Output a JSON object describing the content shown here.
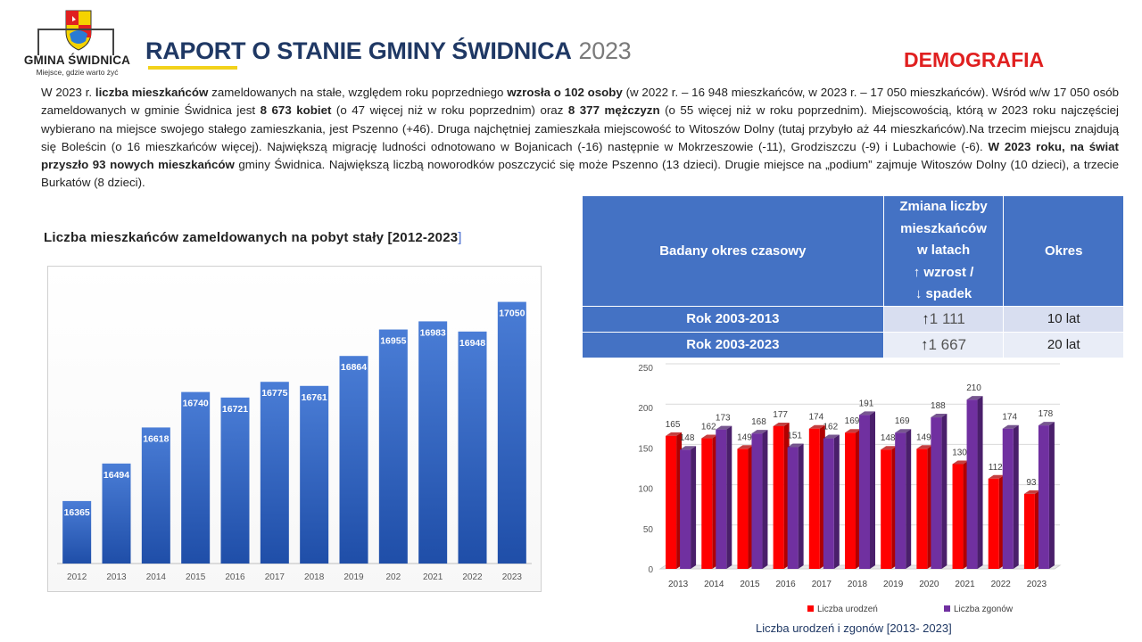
{
  "header": {
    "logo_name": "GMINA ŚWIDNICA",
    "logo_motto": "Miejsce, gdzie warto żyć",
    "title": "RAPORT O STANIE GMINY ŚWIDNICA",
    "year": "2023",
    "section": "DEMOGRAFIA"
  },
  "intro": {
    "s1": "W 2023 r. ",
    "s2": "liczba mieszkańców",
    "s3": " zameldowanych na stałe, względem roku poprzedniego ",
    "s4": "wzrosła o 102 osoby",
    "s5": " (w 2022 r. – 16 948 mieszkańców, w 2023 r. – 17 050 mieszkańców). Wśród w/w 17 050 osób zameldowanych w gminie Świdnica jest ",
    "s6": "8 673 kobiet",
    "s7": " (o 47 więcej niż w roku poprzednim) oraz ",
    "s8": "8 377 mężczyzn",
    "s9": " (o 55 więcej niż w roku poprzednim). Miejscowością, którą w 2023 roku najczęściej wybierano na miejsce swojego stałego zamieszkania, jest Pszenno (+46). Druga najchętniej zamieszkała miejscowość to Witoszów Dolny (tutaj przybyło aż 44 mieszkańców).Na trzecim miejscu znajdują się Boleścin (o 16 mieszkańców więcej). Największą migrację ludności odnotowano w Bojanicach (-16) następnie w Mokrzeszowie (-11), Grodziszczu (-9) i Lubachowie (-6). ",
    "s10": "W 2023 roku, na świat przyszło 93 nowych mieszkańców",
    "s11": " gminy Świdnica. Największą liczbą noworodków poszczycić się może Pszenno (13 dzieci). Drugie miejsce na „podium” zajmuje Witoszów Dolny (10 dzieci), a trzecie Burkatów (8 dzieci)."
  },
  "period_table": {
    "header_period": "Badany okres czasowy",
    "header_change_lines": [
      "Zmiana liczby",
      "mieszkańców",
      "w latach",
      "↑ wzrost /",
      "↓ spadek"
    ],
    "header_okres": "Okres",
    "rows": [
      {
        "label": "Rok 2003-2013",
        "arrow": "↑",
        "change": "1 111",
        "okres": "10 lat"
      },
      {
        "label": "Rok 2003-2023",
        "arrow": "↑",
        "change": "1 667",
        "okres": "20 lat"
      }
    ]
  },
  "chart_data": [
    {
      "type": "bar",
      "title": "Liczba mieszkańców zameldowanych na pobyt stały [2012-2023",
      "title_bracket": "]",
      "categories": [
        "2012",
        "2013",
        "2014",
        "2015",
        "2016",
        "2017",
        "2018",
        "2019",
        "202",
        "2021",
        "2022",
        "2023"
      ],
      "values": [
        16365,
        16494,
        16618,
        16740,
        16721,
        16775,
        16761,
        16864,
        16955,
        16983,
        16948,
        17050
      ],
      "ylim": [
        16150,
        17110
      ],
      "xlabel": "",
      "ylabel": "",
      "grid": false,
      "colors": {
        "bar_top": "#4a7dd6",
        "bar_bottom": "#1f4ea8"
      }
    },
    {
      "type": "bar",
      "caption": "Liczba urodzeń  i zgonów [2013- 2023]",
      "categories": [
        "2013",
        "2014",
        "2015",
        "2016",
        "2017",
        "2018",
        "2019",
        "2020",
        "2021",
        "2022",
        "2023"
      ],
      "series": [
        {
          "name": "Liczba urodzeń",
          "values": [
            165,
            162,
            149,
            177,
            174,
            169,
            148,
            149,
            130,
            112,
            93
          ],
          "color": "#ff0000"
        },
        {
          "name": "Liczba zgonów",
          "values": [
            148,
            173,
            168,
            151,
            162,
            191,
            169,
            188,
            210,
            174,
            178
          ],
          "color": "#7030a0"
        }
      ],
      "yticks": [
        "0",
        "50",
        "100",
        "150",
        "200",
        "250"
      ],
      "ylim": [
        0,
        250
      ],
      "grid": true,
      "legend": "bottom"
    }
  ]
}
